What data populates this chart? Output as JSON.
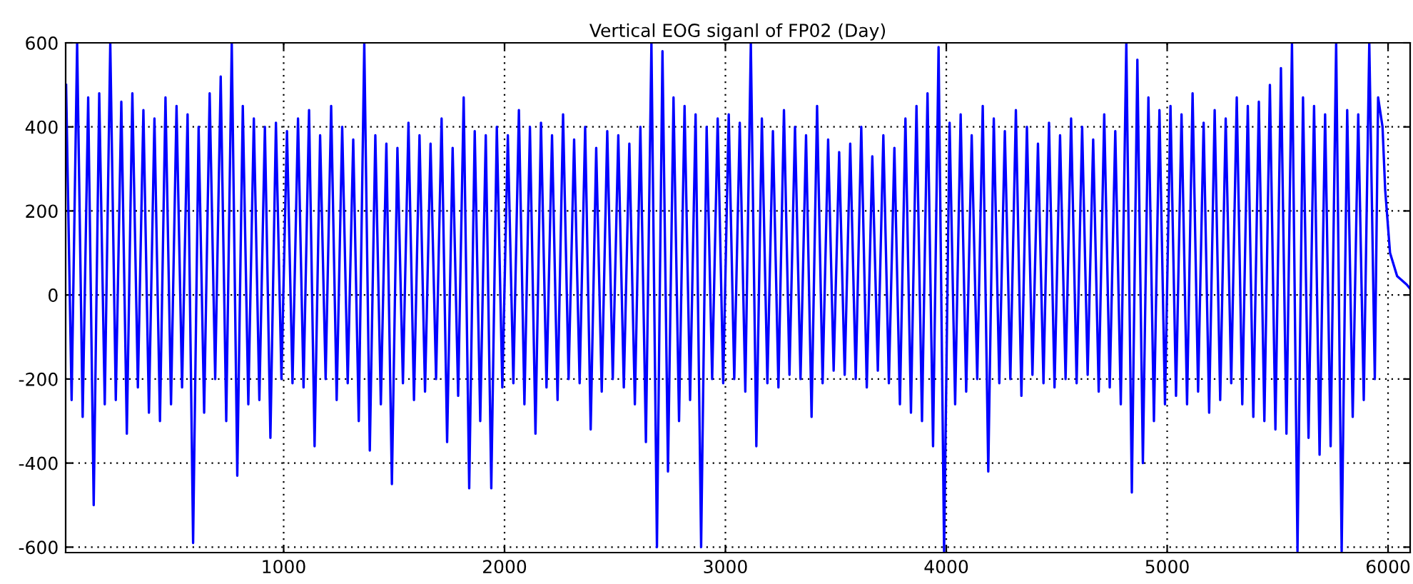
{
  "chart_data": {
    "type": "line",
    "title": "Vertical EOG siganl of FP02 (Day)",
    "xlim": [
      13,
      6100
    ],
    "ylim": [
      -613,
      600
    ],
    "xticks": [
      1000,
      2000,
      3000,
      4000,
      5000,
      6000
    ],
    "yticks": [
      -600,
      -400,
      -200,
      0,
      200,
      400,
      600
    ],
    "grid": true,
    "line_style": "solid",
    "marker": "none",
    "series": [
      {
        "color": "#0000ff",
        "x": [
          15,
          40,
          65,
          90,
          115,
          140,
          165,
          190,
          215,
          240,
          265,
          290,
          315,
          340,
          365,
          390,
          415,
          440,
          465,
          490,
          515,
          540,
          565,
          590,
          615,
          640,
          665,
          690,
          715,
          740,
          765,
          790,
          815,
          840,
          865,
          890,
          915,
          940,
          965,
          990,
          1015,
          1040,
          1065,
          1090,
          1115,
          1140,
          1165,
          1190,
          1215,
          1240,
          1265,
          1290,
          1315,
          1340,
          1365,
          1390,
          1415,
          1440,
          1465,
          1490,
          1515,
          1540,
          1565,
          1590,
          1615,
          1640,
          1665,
          1690,
          1715,
          1740,
          1765,
          1790,
          1815,
          1840,
          1865,
          1890,
          1915,
          1940,
          1965,
          1990,
          2015,
          2040,
          2065,
          2090,
          2115,
          2140,
          2165,
          2190,
          2215,
          2240,
          2265,
          2290,
          2315,
          2340,
          2365,
          2390,
          2415,
          2440,
          2465,
          2490,
          2515,
          2540,
          2565,
          2590,
          2615,
          2640,
          2665,
          2690,
          2715,
          2740,
          2765,
          2790,
          2815,
          2840,
          2865,
          2890,
          2915,
          2940,
          2965,
          2990,
          3015,
          3040,
          3065,
          3090,
          3115,
          3140,
          3165,
          3190,
          3215,
          3240,
          3265,
          3290,
          3315,
          3340,
          3365,
          3390,
          3415,
          3440,
          3465,
          3490,
          3515,
          3540,
          3565,
          3590,
          3615,
          3640,
          3665,
          3690,
          3715,
          3740,
          3765,
          3790,
          3815,
          3840,
          3865,
          3890,
          3915,
          3940,
          3965,
          3990,
          4015,
          4040,
          4065,
          4090,
          4115,
          4140,
          4165,
          4190,
          4215,
          4240,
          4265,
          4290,
          4315,
          4340,
          4365,
          4390,
          4415,
          4440,
          4465,
          4490,
          4515,
          4540,
          4565,
          4590,
          4615,
          4640,
          4665,
          4690,
          4715,
          4740,
          4765,
          4790,
          4815,
          4840,
          4865,
          4890,
          4915,
          4940,
          4965,
          4990,
          5015,
          5040,
          5065,
          5090,
          5115,
          5140,
          5165,
          5190,
          5215,
          5240,
          5265,
          5290,
          5315,
          5340,
          5365,
          5390,
          5415,
          5440,
          5465,
          5490,
          5515,
          5540,
          5565,
          5590,
          5615,
          5640,
          5665,
          5690,
          5715,
          5740,
          5765,
          5790,
          5815,
          5840,
          5865,
          5890,
          5915,
          5940,
          5955,
          5975,
          5987,
          6009,
          6041,
          6084,
          6100
        ],
        "values": [
          500,
          -250,
          600,
          -290,
          470,
          -500,
          480,
          -260,
          600,
          -250,
          460,
          -330,
          480,
          -220,
          440,
          -280,
          420,
          -300,
          470,
          -260,
          450,
          -220,
          430,
          -590,
          400,
          -280,
          480,
          -200,
          520,
          -300,
          600,
          -430,
          450,
          -260,
          420,
          -250,
          400,
          -340,
          410,
          -200,
          390,
          -210,
          420,
          -220,
          440,
          -360,
          380,
          -200,
          450,
          -250,
          400,
          -210,
          370,
          -300,
          600,
          -370,
          380,
          -260,
          360,
          -450,
          350,
          -210,
          410,
          -250,
          380,
          -230,
          360,
          -200,
          420,
          -350,
          350,
          -240,
          470,
          -460,
          390,
          -300,
          380,
          -460,
          400,
          -220,
          380,
          -210,
          440,
          -260,
          400,
          -330,
          410,
          -220,
          380,
          -250,
          430,
          -200,
          370,
          -210,
          400,
          -320,
          350,
          -230,
          390,
          -200,
          380,
          -220,
          360,
          -260,
          400,
          -350,
          600,
          -600,
          580,
          -420,
          470,
          -300,
          450,
          -250,
          430,
          -600,
          400,
          -200,
          420,
          -210,
          430,
          -200,
          410,
          -230,
          600,
          -360,
          420,
          -210,
          390,
          -220,
          440,
          -190,
          400,
          -200,
          380,
          -290,
          450,
          -210,
          370,
          -180,
          340,
          -190,
          360,
          -200,
          400,
          -220,
          330,
          -180,
          380,
          -210,
          350,
          -260,
          420,
          -280,
          450,
          -300,
          480,
          -360,
          590,
          -610,
          410,
          -260,
          430,
          -230,
          380,
          -200,
          450,
          -420,
          420,
          -210,
          390,
          -200,
          440,
          -240,
          400,
          -190,
          360,
          -210,
          410,
          -220,
          380,
          -200,
          420,
          -210,
          400,
          -190,
          370,
          -230,
          430,
          -220,
          390,
          -260,
          600,
          -470,
          560,
          -400,
          470,
          -300,
          440,
          -260,
          450,
          -240,
          430,
          -260,
          480,
          -230,
          410,
          -280,
          440,
          -250,
          420,
          -210,
          470,
          -260,
          450,
          -290,
          460,
          -300,
          500,
          -320,
          540,
          -330,
          600,
          -610,
          470,
          -340,
          450,
          -380,
          430,
          -360,
          600,
          -610,
          440,
          -290,
          430,
          -250,
          600,
          -200,
          470,
          400,
          250,
          100,
          45,
          25,
          15
        ]
      }
    ]
  }
}
